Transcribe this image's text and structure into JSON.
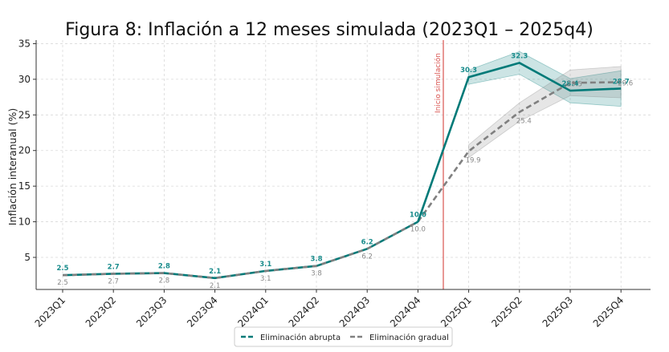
{
  "chart_data": {
    "type": "line",
    "title": "Figura 8: Inflación a 12 meses simulada (2023Q1 – 2025q4)",
    "xlabel": "",
    "ylabel": "Inflación interanual (%)",
    "ylim": [
      0.5,
      35.5
    ],
    "yticks": [
      5,
      10,
      15,
      20,
      25,
      30,
      35
    ],
    "categories": [
      "2023Q1",
      "2023Q2",
      "2023Q3",
      "2023Q4",
      "2024Q1",
      "2024Q2",
      "2024Q3",
      "2024Q4",
      "2025Q1",
      "2025Q2",
      "2025Q3",
      "2025Q4"
    ],
    "series": [
      {
        "name": "Eliminación abrupta",
        "color": "#007a78",
        "values": [
          2.5,
          2.7,
          2.8,
          2.1,
          3.1,
          3.8,
          6.2,
          10.0,
          30.3,
          32.3,
          28.4,
          28.7
        ],
        "labels": [
          "2.5",
          "2.7",
          "2.8",
          "2.1",
          "3.1",
          "3.8",
          "6.2",
          "10.0",
          "30.3",
          "32.3",
          "28.4",
          "28.7"
        ],
        "band_low": [
          null,
          null,
          null,
          null,
          null,
          null,
          null,
          null,
          29.3,
          30.7,
          26.7,
          26.2
        ],
        "band_high": [
          null,
          null,
          null,
          null,
          null,
          null,
          null,
          null,
          31.3,
          33.9,
          30.1,
          31.2
        ]
      },
      {
        "name": "Eliminación gradual",
        "color": "#808080",
        "values": [
          2.5,
          2.7,
          2.8,
          2.1,
          3.1,
          3.8,
          6.2,
          10.0,
          19.9,
          25.4,
          29.5,
          29.6
        ],
        "labels": [
          "2.5",
          "2.7",
          "2.8",
          "2.1",
          "3.1",
          "3.8",
          "6.2",
          "10.0",
          "19.9",
          "25.4",
          "29.5",
          "29.6"
        ],
        "band_low": [
          null,
          null,
          null,
          null,
          null,
          null,
          null,
          null,
          19.0,
          24.1,
          27.7,
          27.4
        ],
        "band_high": [
          null,
          null,
          null,
          null,
          null,
          null,
          null,
          null,
          20.8,
          26.7,
          31.3,
          31.8
        ]
      }
    ],
    "vline": {
      "position": 7.5,
      "label": "Inicio simulación",
      "color": "#d9534f"
    },
    "grid": true,
    "legend": "bottom-center"
  }
}
